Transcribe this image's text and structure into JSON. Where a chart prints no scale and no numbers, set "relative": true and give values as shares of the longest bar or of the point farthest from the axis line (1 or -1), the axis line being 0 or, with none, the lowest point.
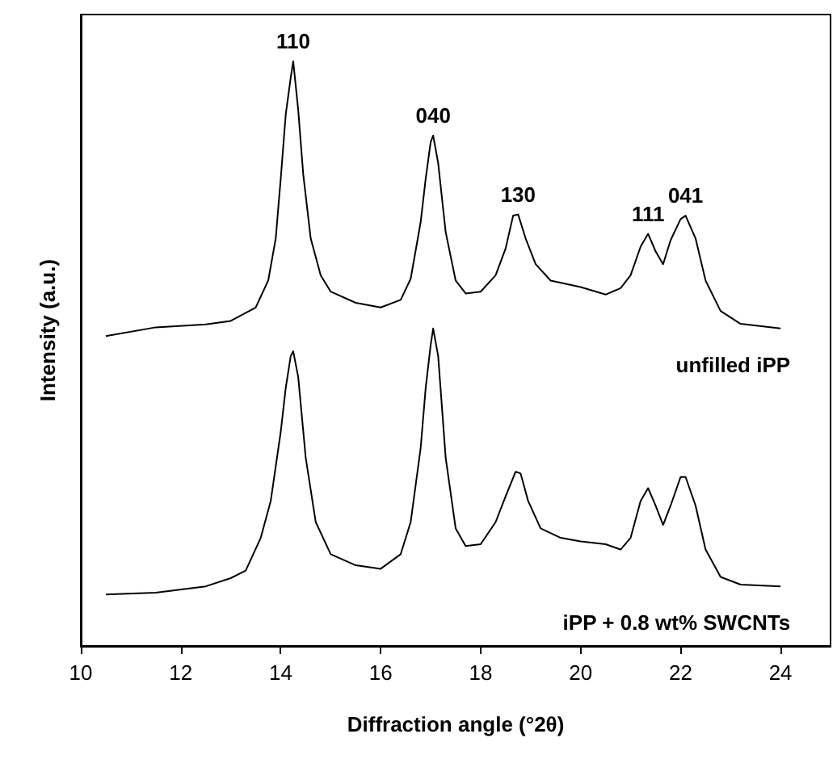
{
  "chart_data": {
    "type": "line",
    "relative": true,
    "xlabel": "Diffraction angle (°2θ)",
    "ylabel": "Intensity (a.u.)",
    "xlim": [
      10,
      25
    ],
    "xticks": [
      10,
      12,
      14,
      16,
      18,
      20,
      22,
      24
    ],
    "grid": false,
    "legend": false,
    "marker": "none",
    "line_style": "solid",
    "x": [
      10.5,
      11.5,
      12.5,
      13.0,
      13.5,
      13.75,
      13.9,
      14.0,
      14.1,
      14.2,
      14.25,
      14.35,
      14.45,
      14.6,
      14.8,
      15.0,
      15.5,
      16.0,
      16.4,
      16.6,
      16.8,
      16.9,
      17.0,
      17.05,
      17.15,
      17.3,
      17.5,
      17.7,
      18.0,
      18.3,
      18.5,
      18.65,
      18.75,
      18.9,
      19.1,
      19.4,
      20.0,
      20.5,
      20.8,
      21.0,
      21.2,
      21.35,
      21.5,
      21.65,
      21.8,
      22.0,
      22.1,
      22.3,
      22.5,
      22.8,
      23.2,
      24.0
    ],
    "series": [
      {
        "name": "unfilled iPP",
        "color": "#000000",
        "values": [
          0.53,
          0.545,
          0.55,
          0.556,
          0.579,
          0.625,
          0.697,
          0.799,
          0.909,
          0.972,
          1,
          0.917,
          0.807,
          0.697,
          0.634,
          0.606,
          0.587,
          0.579,
          0.592,
          0.628,
          0.725,
          0.799,
          0.862,
          0.873,
          0.826,
          0.708,
          0.625,
          0.603,
          0.606,
          0.634,
          0.68,
          0.736,
          0.738,
          0.697,
          0.653,
          0.625,
          0.614,
          0.601,
          0.612,
          0.634,
          0.683,
          0.705,
          0.675,
          0.653,
          0.694,
          0.73,
          0.736,
          0.697,
          0.625,
          0.573,
          0.551,
          0.543
        ]
      },
      {
        "name": "iPP + 0.8 wt% SWCNTs",
        "color": "#000000",
        "x": [
          10.5,
          11.5,
          12.5,
          13.0,
          13.3,
          13.6,
          13.8,
          14.0,
          14.1,
          14.2,
          14.25,
          14.35,
          14.5,
          14.7,
          15.0,
          15.5,
          16.0,
          16.4,
          16.6,
          16.8,
          16.9,
          17.0,
          17.05,
          17.15,
          17.3,
          17.5,
          17.7,
          18.0,
          18.3,
          18.5,
          18.7,
          18.8,
          18.95,
          19.2,
          19.6,
          20.0,
          20.5,
          20.8,
          21.0,
          21.2,
          21.35,
          21.5,
          21.65,
          21.8,
          22.0,
          22.1,
          22.3,
          22.5,
          22.8,
          23.2,
          24.0
        ],
        "values": [
          0.088,
          0.091,
          0.102,
          0.116,
          0.129,
          0.185,
          0.248,
          0.366,
          0.441,
          0.496,
          0.504,
          0.46,
          0.322,
          0.212,
          0.157,
          0.138,
          0.132,
          0.157,
          0.212,
          0.339,
          0.441,
          0.515,
          0.543,
          0.496,
          0.322,
          0.201,
          0.171,
          0.174,
          0.212,
          0.256,
          0.298,
          0.295,
          0.248,
          0.201,
          0.185,
          0.179,
          0.174,
          0.165,
          0.185,
          0.248,
          0.27,
          0.24,
          0.207,
          0.24,
          0.289,
          0.289,
          0.24,
          0.165,
          0.118,
          0.105,
          0.102
        ]
      }
    ],
    "annotations": [
      {
        "text": "110",
        "x": 14.25,
        "y": 1
      },
      {
        "text": "040",
        "x": 17.05,
        "y": 0.873
      },
      {
        "text": "130",
        "x": 18.75,
        "y": 0.738
      },
      {
        "text": "111",
        "x": 21.35,
        "y": 0.705
      },
      {
        "text": "041",
        "x": 22.1,
        "y": 0.736
      }
    ]
  }
}
